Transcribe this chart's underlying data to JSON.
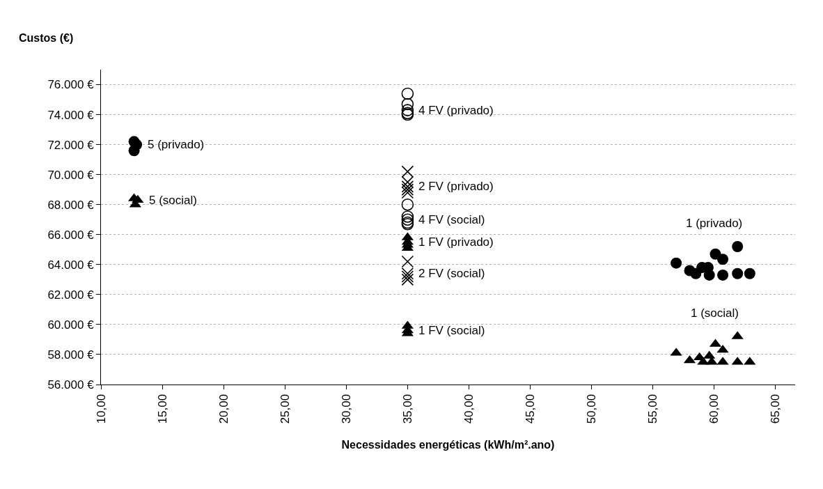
{
  "chart_data": {
    "type": "scatter",
    "ylabel": "Custos (€)",
    "xlabel": "Necessidades energéticas (kWh/m².ano)",
    "xlim": [
      10,
      66.6
    ],
    "ylim": [
      56000,
      77000
    ],
    "xticks": [
      {
        "value": 10,
        "label": "10,00"
      },
      {
        "value": 15,
        "label": "15,00"
      },
      {
        "value": 20,
        "label": "20,00"
      },
      {
        "value": 25,
        "label": "25,00"
      },
      {
        "value": 30,
        "label": "30,00"
      },
      {
        "value": 35,
        "label": "35,00"
      },
      {
        "value": 40,
        "label": "40,00"
      },
      {
        "value": 45,
        "label": "45,00"
      },
      {
        "value": 50,
        "label": "50,00"
      },
      {
        "value": 55,
        "label": "55,00"
      },
      {
        "value": 60,
        "label": "60,00"
      },
      {
        "value": 65,
        "label": "65,00"
      }
    ],
    "yticks": [
      {
        "value": 56000,
        "label": "56.000 €"
      },
      {
        "value": 58000,
        "label": "58.000 €"
      },
      {
        "value": 60000,
        "label": "60.000 €"
      },
      {
        "value": 62000,
        "label": "62.000 €"
      },
      {
        "value": 64000,
        "label": "64.000 €"
      },
      {
        "value": 66000,
        "label": "66.000 €"
      },
      {
        "value": 68000,
        "label": "68.000 €"
      },
      {
        "value": 70000,
        "label": "70.000 €"
      },
      {
        "value": 72000,
        "label": "72.000 €"
      },
      {
        "value": 74000,
        "label": "74.000 €"
      },
      {
        "value": 76000,
        "label": "76.000 €"
      }
    ],
    "grid": "y",
    "legend": false,
    "series": [
      {
        "name": "5 (privado)",
        "color": "#000000",
        "marker": "circle",
        "x": [
          12.7,
          12.9,
          12.7
        ],
        "values": [
          72200,
          72000,
          71600
        ]
      },
      {
        "name": "5 (social)",
        "color": "#000000",
        "marker": "triangle",
        "x": [
          12.7,
          13.0,
          12.8
        ],
        "values": [
          68400,
          68300,
          68000
        ]
      },
      {
        "name": "4 FV (privado)",
        "color": "#000000",
        "marker": "circle-open",
        "x": [
          35,
          35,
          35,
          35,
          35
        ],
        "values": [
          75400,
          74700,
          74300,
          74100,
          74000
        ]
      },
      {
        "name": "2 FV (privado)",
        "color": "#000000",
        "marker": "cross",
        "x": [
          35,
          35,
          35,
          35,
          35
        ],
        "values": [
          70200,
          69500,
          69200,
          69000,
          68800
        ]
      },
      {
        "name": "4 FV (social)",
        "color": "#000000",
        "marker": "circle-open",
        "x": [
          35,
          35,
          35,
          35,
          35
        ],
        "values": [
          68000,
          67200,
          67000,
          66800,
          66700
        ]
      },
      {
        "name": "1 FV (privado)",
        "color": "#000000",
        "marker": "triangle",
        "x": [
          35,
          35,
          35,
          35
        ],
        "values": [
          65800,
          65500,
          65300,
          65100
        ]
      },
      {
        "name": "2 FV (social)",
        "color": "#000000",
        "marker": "cross",
        "x": [
          35,
          35,
          35,
          35
        ],
        "values": [
          64200,
          63400,
          63200,
          63000
        ]
      },
      {
        "name": "1 FV (social)",
        "color": "#000000",
        "marker": "triangle",
        "x": [
          35,
          35,
          35
        ],
        "values": [
          59900,
          59600,
          59400
        ]
      },
      {
        "name": "1 (privado)",
        "color": "#000000",
        "marker": "circle",
        "x": [
          56.9,
          58.0,
          58.5,
          59.0,
          59.5,
          59.6,
          60.1,
          60.7,
          60.7,
          61.9,
          61.9,
          62.9
        ],
        "values": [
          64100,
          63600,
          63400,
          63800,
          63800,
          63300,
          64700,
          64350,
          63300,
          65200,
          63400,
          63400
        ]
      },
      {
        "name": "1 (social)",
        "color": "#000000",
        "marker": "triangle",
        "x": [
          56.9,
          58.0,
          58.8,
          59.1,
          59.6,
          59.8,
          60.1,
          60.7,
          60.7,
          61.9,
          61.9,
          62.9
        ],
        "values": [
          58100,
          57600,
          57800,
          57500,
          57900,
          57500,
          58700,
          58300,
          57500,
          59200,
          57500,
          57500
        ]
      }
    ]
  }
}
